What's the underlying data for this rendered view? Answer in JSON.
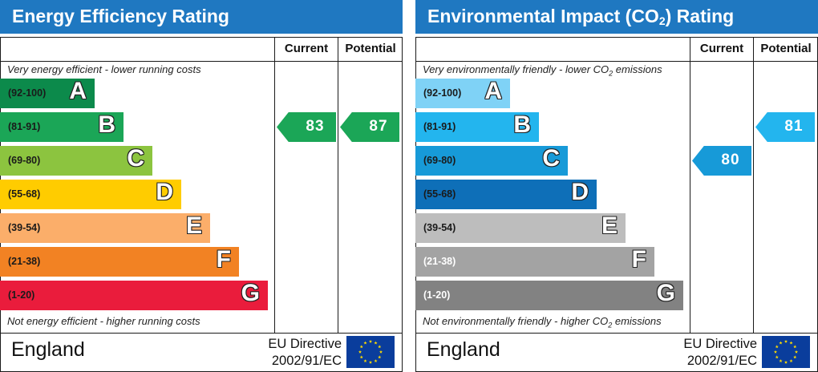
{
  "chart_data": [
    {
      "type": "bar",
      "title": "Energy Efficiency Rating",
      "columns": {
        "current": "Current",
        "potential": "Potential"
      },
      "top_note": "Very energy efficient - lower running costs",
      "bottom_note": "Not energy efficient - higher running costs",
      "bands": [
        {
          "range": "(92-100)",
          "letter": "A",
          "color": "#0c8a4b",
          "light_text": false
        },
        {
          "range": "(81-91)",
          "letter": "B",
          "color": "#1ba657",
          "light_text": false
        },
        {
          "range": "(69-80)",
          "letter": "C",
          "color": "#8cc43f",
          "light_text": false
        },
        {
          "range": "(55-68)",
          "letter": "D",
          "color": "#ffcc00",
          "light_text": false
        },
        {
          "range": "(39-54)",
          "letter": "E",
          "color": "#fbae6a",
          "light_text": false
        },
        {
          "range": "(21-38)",
          "letter": "F",
          "color": "#f28223",
          "light_text": false
        },
        {
          "range": "(1-20)",
          "letter": "G",
          "color": "#ea1c3c",
          "light_text": false
        }
      ],
      "current": {
        "value": 83,
        "band": "B",
        "color": "#1ba657"
      },
      "potential": {
        "value": 87,
        "band": "B",
        "color": "#1ba657"
      },
      "country": "England",
      "directive": [
        "EU Directive",
        "2002/91/EC"
      ]
    },
    {
      "type": "bar",
      "title": "Environmental Impact (CO2) Rating",
      "title_parts": [
        "Environmental Impact (CO",
        "2",
        ") Rating"
      ],
      "columns": {
        "current": "Current",
        "potential": "Potential"
      },
      "top_note": "Very environmentally friendly - lower CO2 emissions",
      "top_note_parts": [
        "Very environmentally friendly - lower CO",
        "2",
        " emissions"
      ],
      "bottom_note": "Not environmentally friendly - higher CO2 emissions",
      "bottom_note_parts": [
        "Not environmentally friendly - higher CO",
        "2",
        " emissions"
      ],
      "bands": [
        {
          "range": "(92-100)",
          "letter": "A",
          "color": "#7fd2f6",
          "light_text": false
        },
        {
          "range": "(81-91)",
          "letter": "B",
          "color": "#23b5ee",
          "light_text": false
        },
        {
          "range": "(69-80)",
          "letter": "C",
          "color": "#179ad8",
          "light_text": false
        },
        {
          "range": "(55-68)",
          "letter": "D",
          "color": "#0e6fb8",
          "light_text": false
        },
        {
          "range": "(39-54)",
          "letter": "E",
          "color": "#bdbdbd",
          "light_text": false
        },
        {
          "range": "(21-38)",
          "letter": "F",
          "color": "#a3a3a3",
          "light_text": true
        },
        {
          "range": "(1-20)",
          "letter": "G",
          "color": "#828282",
          "light_text": true
        }
      ],
      "current": {
        "value": 80,
        "band": "C",
        "color": "#179ad8"
      },
      "potential": {
        "value": 81,
        "band": "B",
        "color": "#23b5ee"
      },
      "country": "England",
      "directive": [
        "EU Directive",
        "2002/91/EC"
      ]
    }
  ]
}
